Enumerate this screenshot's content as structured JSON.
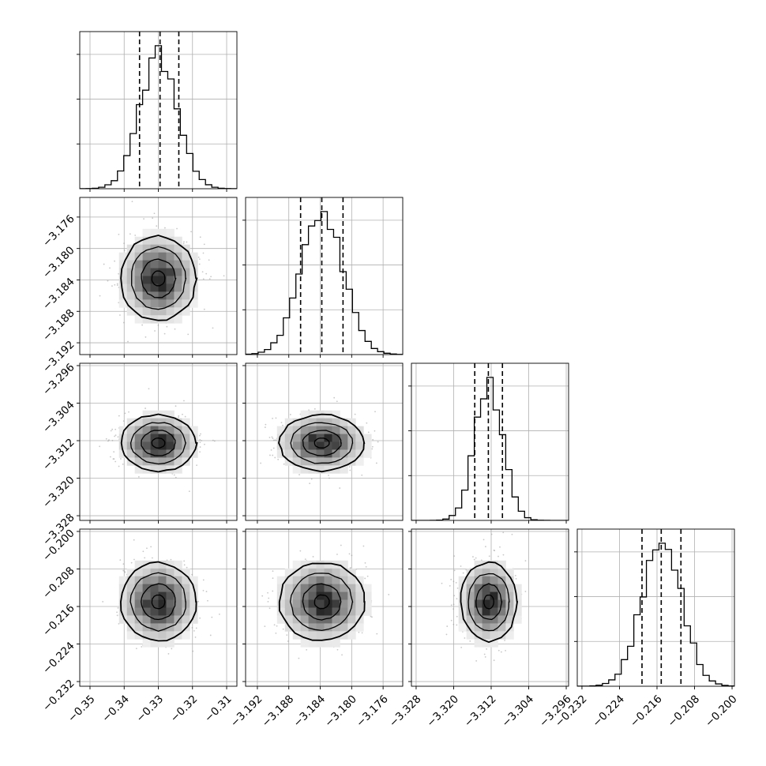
{
  "chart_data": {
    "type": "corner",
    "grid": true,
    "contour_levels": 3,
    "histogram_quantiles": [
      0.16,
      0.5,
      0.84
    ],
    "parameters": [
      {
        "mean": -0.33,
        "sigma": 0.0055,
        "range": [
          -0.353,
          -0.307
        ],
        "ticks": [
          -0.35,
          -0.34,
          -0.33,
          -0.32,
          -0.31
        ],
        "tick_labels": [
          "−0.35",
          "−0.34",
          "−0.33",
          "−0.32",
          "−0.31"
        ],
        "quantile_lines": [
          -0.3355,
          -0.3295,
          -0.324
        ]
      },
      {
        "mean": -3.1838,
        "sigma": 0.0027,
        "range": [
          -3.1935,
          -3.1735
        ],
        "ticks": [
          -3.192,
          -3.188,
          -3.184,
          -3.18,
          -3.176
        ],
        "tick_labels": [
          "−3.192",
          "−3.188",
          "−3.184",
          "−3.180",
          "−3.176"
        ],
        "quantile_lines": [
          -3.1865,
          -3.1838,
          -3.1811
        ]
      },
      {
        "mean": -3.3125,
        "sigma": 0.003,
        "range": [
          -3.329,
          -3.2955
        ],
        "ticks": [
          -3.328,
          -3.32,
          -3.312,
          -3.304,
          -3.296
        ],
        "tick_labels": [
          "−3.328",
          "−3.320",
          "−3.312",
          "−3.304",
          "−3.296"
        ],
        "quantile_lines": [
          -3.3155,
          -3.3126,
          -3.3096
        ]
      },
      {
        "mean": -0.215,
        "sigma": 0.0042,
        "range": [
          -0.233,
          -0.1995
        ],
        "ticks": [
          -0.232,
          -0.224,
          -0.216,
          -0.208,
          -0.2
        ],
        "tick_labels": [
          "−0.232",
          "−0.224",
          "−0.216",
          "−0.208",
          "−0.200"
        ],
        "quantile_lines": [
          -0.2192,
          -0.2151,
          -0.2109
        ]
      }
    ],
    "colors": {
      "line": "#000000",
      "grid": "#b0b0b0",
      "scatter": "#9a9a9a",
      "background": "#ffffff"
    }
  }
}
